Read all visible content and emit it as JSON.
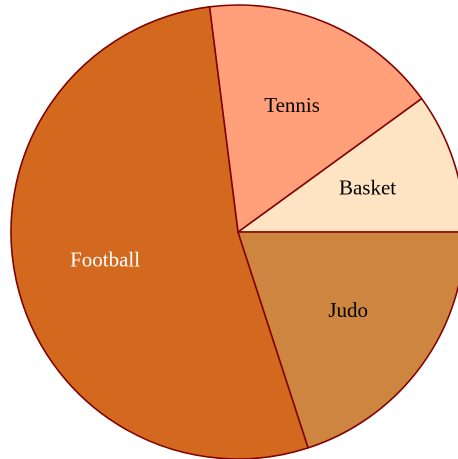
{
  "chart_data": {
    "type": "pie",
    "categories": [
      "Basket",
      "Tennis",
      "Football",
      "Judo"
    ],
    "values": [
      10,
      17,
      53,
      20
    ],
    "colors": [
      "#ffe4c4",
      "#ffa07a",
      "#d2691e",
      "#cd853f"
    ],
    "edge_color": "#800000"
  }
}
